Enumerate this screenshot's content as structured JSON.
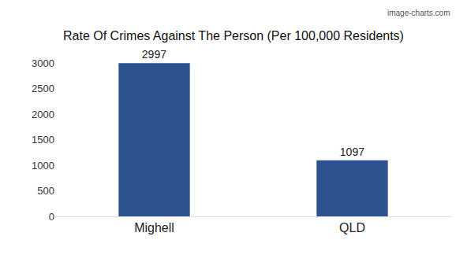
{
  "chart_data": {
    "type": "bar",
    "title": "Rate Of Crimes Against The Person (Per 100,000 Residents)",
    "categories": [
      "Mighell",
      "QLD"
    ],
    "values": [
      2997,
      1097
    ],
    "color": "#2c5290",
    "ylim": [
      0,
      3000
    ],
    "yticks": [
      0,
      500,
      1000,
      1500,
      2000,
      2500,
      3000
    ],
    "grid": false,
    "data_labels": true,
    "annotations": [
      "image-charts.com"
    ]
  }
}
